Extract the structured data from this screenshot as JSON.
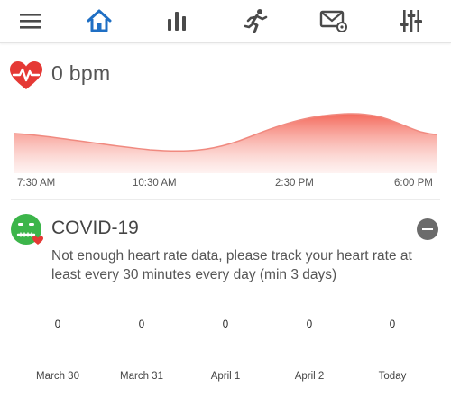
{
  "nav": {
    "items": [
      {
        "name": "menu",
        "icon": "menu-icon"
      },
      {
        "name": "home",
        "icon": "home-icon",
        "active": true
      },
      {
        "name": "stats",
        "icon": "bar-chart-icon"
      },
      {
        "name": "activity",
        "icon": "running-icon"
      },
      {
        "name": "notifications",
        "icon": "mail-settings-icon"
      },
      {
        "name": "settings",
        "icon": "sliders-icon"
      }
    ],
    "active_color": "#1f6fc4",
    "icon_color": "#4a4a4a"
  },
  "heart_rate": {
    "value": "0 bpm",
    "icon": "heart-pulse-icon",
    "color": "#e53935",
    "chart": {
      "type": "area",
      "x_labels": [
        "7:30 AM",
        "10:30 AM",
        "2:30 PM",
        "6:00 PM"
      ],
      "fill_color_top": "#f46a5c",
      "fill_color_bottom": "#fde7e4",
      "line_color": "#f08a80"
    }
  },
  "covid": {
    "title": "COVID-19",
    "icon": "sick-face-icon",
    "icon_color": "#3cb54a",
    "message": "Not enough heart rate data, please track your heart rate at least every 30 minutes every day (min 3 days)",
    "collapse_icon": "minus-circle-icon",
    "days": [
      {
        "label": "March 30",
        "count": "0"
      },
      {
        "label": "March 31",
        "count": "0"
      },
      {
        "label": "April 1",
        "count": "0"
      },
      {
        "label": "April 2",
        "count": "0"
      },
      {
        "label": "Today",
        "count": "0"
      }
    ]
  }
}
